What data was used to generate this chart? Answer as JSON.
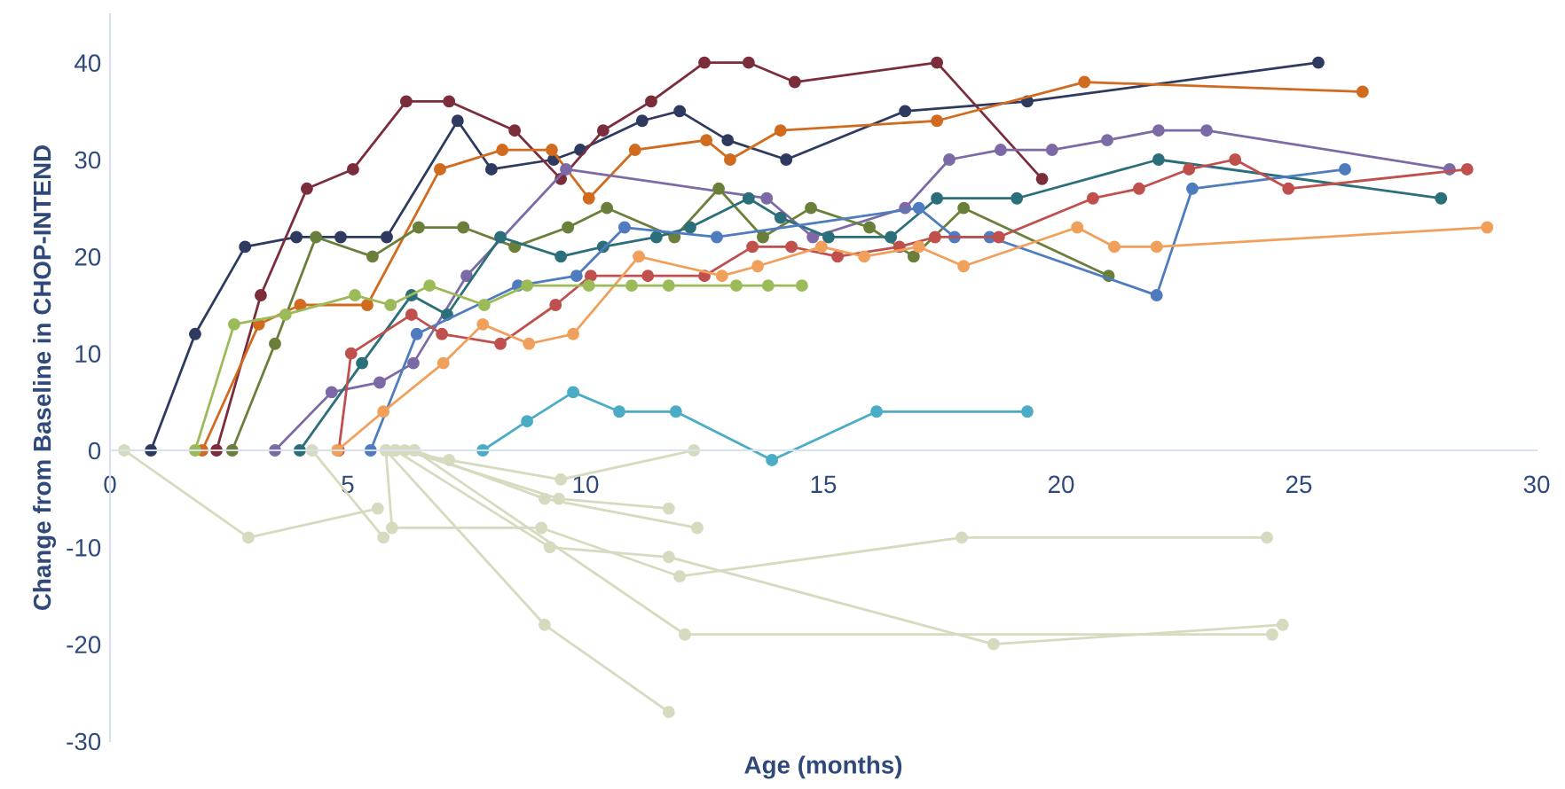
{
  "chart_data": {
    "type": "line",
    "xlabel": "Age (months)",
    "ylabel": "Change from Baseline in CHOP-INTEND",
    "xlim": [
      0,
      30
    ],
    "ylim": [
      -30,
      45
    ],
    "xticks": [
      0,
      5,
      10,
      15,
      20,
      25,
      30
    ],
    "yticks": [
      -30,
      -20,
      -10,
      0,
      10,
      20,
      30,
      40
    ],
    "grid": false,
    "legend": false,
    "marker": "circle",
    "line_style": "solid",
    "series": [
      {
        "color": "#2e3a5f",
        "x": [
          0.86,
          1.79,
          2.84,
          3.92,
          4.85,
          5.82,
          7.31,
          8.02,
          9.33,
          9.89,
          11.19,
          11.98,
          12.99,
          14.22,
          16.72,
          19.29,
          25.41
        ],
        "values": [
          0,
          12,
          21,
          22,
          22,
          22,
          34,
          29,
          30,
          31,
          34,
          35,
          32,
          30,
          35,
          36,
          40
        ]
      },
      {
        "color": "#7b2d3b",
        "x": [
          2.24,
          3.17,
          4.14,
          5.11,
          6.23,
          7.13,
          8.51,
          9.48,
          10.37,
          11.38,
          12.5,
          13.43,
          14.4,
          17.39,
          19.6
        ],
        "values": [
          0,
          16,
          27,
          29,
          36,
          36,
          33,
          28,
          33,
          36,
          40,
          40,
          38,
          40,
          28
        ]
      },
      {
        "color": "#d06b1f",
        "x": [
          1.94,
          3.13,
          4.0,
          5.41,
          6.94,
          8.25,
          9.29,
          10.07,
          11.04,
          12.54,
          13.04,
          14.1,
          17.39,
          20.49,
          26.34
        ],
        "values": [
          0,
          13,
          15,
          15,
          29,
          31,
          31,
          26,
          31,
          32,
          30,
          33,
          34,
          38,
          37
        ]
      },
      {
        "color": "#7c6aa6",
        "x": [
          3.47,
          4.66,
          5.67,
          6.38,
          7.5,
          9.59,
          13.81,
          14.78,
          16.72,
          17.65,
          18.73,
          19.81,
          20.97,
          22.05,
          23.06,
          28.17
        ],
        "values": [
          0,
          6,
          7,
          9,
          18,
          29,
          26,
          22,
          25,
          30,
          31,
          31,
          32,
          33,
          33,
          29
        ]
      },
      {
        "color": "#6a7f3a",
        "x": [
          2.57,
          3.47,
          4.33,
          5.52,
          6.49,
          7.43,
          8.51,
          9.63,
          10.45,
          11.87,
          12.8,
          13.73,
          14.74,
          15.97,
          16.9,
          17.95,
          21.0
        ],
        "values": [
          0,
          11,
          22,
          20,
          23,
          23,
          21,
          23,
          25,
          22,
          27,
          22,
          25,
          23,
          20,
          25,
          18
        ]
      },
      {
        "color": "#2a6f7a",
        "x": [
          3.99,
          5.3,
          6.34,
          7.09,
          8.21,
          9.48,
          10.37,
          11.49,
          12.2,
          13.43,
          14.1,
          15.11,
          16.42,
          17.39,
          19.07,
          22.05,
          27.99
        ],
        "values": [
          0,
          9,
          16,
          14,
          22,
          20,
          21,
          22,
          23,
          26,
          24,
          22,
          22,
          26,
          26,
          30,
          26
        ]
      },
      {
        "color": "#4f7bbf",
        "x": [
          5.48,
          6.45,
          8.58,
          9.81,
          10.82,
          12.76,
          17.01,
          17.76,
          18.5,
          22.01,
          22.76,
          25.97
        ],
        "values": [
          0,
          12,
          17,
          18,
          23,
          22,
          25,
          22,
          22,
          16,
          27,
          29
        ]
      },
      {
        "color": "#c0504d",
        "x": [
          4.81,
          5.07,
          6.34,
          6.98,
          8.21,
          9.37,
          10.11,
          11.31,
          12.5,
          13.51,
          14.33,
          15.3,
          16.6,
          17.35,
          18.69,
          20.67,
          21.64,
          22.69,
          23.66,
          24.78,
          28.54
        ],
        "values": [
          0,
          10,
          14,
          12,
          11,
          15,
          18,
          18,
          18,
          21,
          21,
          20,
          21,
          22,
          22,
          26,
          27,
          29,
          30,
          27,
          29
        ]
      },
      {
        "color": "#f0a05a",
        "x": [
          4.78,
          5.75,
          7.01,
          7.84,
          8.81,
          9.74,
          11.12,
          12.87,
          13.62,
          14.96,
          15.86,
          17.01,
          17.95,
          20.34,
          21.12,
          22.01,
          28.96
        ],
        "values": [
          0,
          4,
          9,
          13,
          11,
          12,
          20,
          18,
          19,
          21,
          20,
          21,
          19,
          23,
          21,
          21,
          23
        ]
      },
      {
        "color": "#9bbb59",
        "x": [
          1.79,
          2.61,
          3.69,
          5.15,
          5.9,
          6.72,
          7.87,
          8.77,
          10.07,
          10.97,
          11.75,
          13.17,
          13.84,
          14.55
        ],
        "values": [
          0,
          13,
          14,
          16,
          15,
          17,
          15,
          17,
          17,
          17,
          17,
          17,
          17,
          17
        ]
      },
      {
        "color": "#4bacc6",
        "x": [
          7.84,
          8.77,
          9.74,
          10.71,
          11.9,
          13.92,
          16.12,
          19.29
        ],
        "values": [
          0,
          3,
          6,
          4,
          4,
          -1,
          4,
          4
        ]
      },
      {
        "color": "#d6dbbf",
        "x": [
          0.3,
          2.91,
          5.63
        ],
        "values": [
          0,
          -9,
          -6
        ]
      },
      {
        "color": "#d6dbbf",
        "x": [
          4.25,
          5.75
        ],
        "values": [
          0,
          -9
        ]
      },
      {
        "color": "#d6dbbf",
        "x": [
          5.8,
          5.93,
          9.07,
          11.98,
          17.91,
          24.33
        ],
        "values": [
          0,
          -8,
          -8,
          -13,
          -9,
          -9
        ]
      },
      {
        "color": "#d6dbbf",
        "x": [
          6.0,
          7.13,
          9.48,
          12.28
        ],
        "values": [
          0,
          -1,
          -3,
          0
        ]
      },
      {
        "color": "#d6dbbf",
        "x": [
          6.2,
          9.44,
          11.75
        ],
        "values": [
          0,
          -5,
          -6
        ]
      },
      {
        "color": "#d6dbbf",
        "x": [
          6.4,
          9.14,
          12.35
        ],
        "values": [
          0,
          -5,
          -8
        ]
      },
      {
        "color": "#d6dbbf",
        "x": [
          6.0,
          9.25,
          11.75,
          18.58,
          24.66
        ],
        "values": [
          0,
          -10,
          -11,
          -20,
          -18
        ]
      },
      {
        "color": "#d6dbbf",
        "x": [
          5.8,
          9.14,
          11.75
        ],
        "values": [
          0,
          -18,
          -27
        ]
      },
      {
        "color": "#d6dbbf",
        "x": [
          6.4,
          12.09,
          24.44
        ],
        "values": [
          0,
          -19,
          -19
        ]
      }
    ]
  }
}
